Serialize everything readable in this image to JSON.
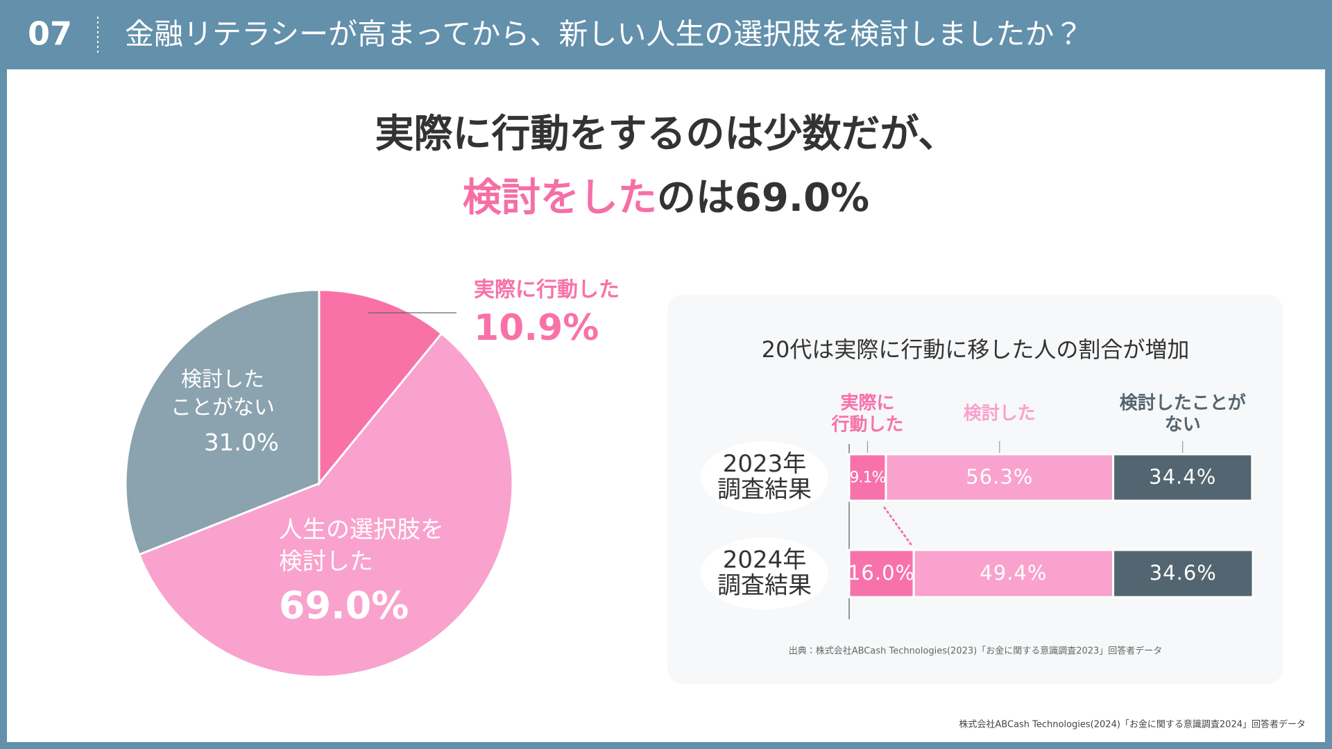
{
  "header": {
    "number": "07",
    "title": "金融リテラシーが高まってから、新しい人生の選択肢を検討しましたか？"
  },
  "headline": {
    "line1": "実際に行動をするのは少数だが、",
    "line2_highlight": "検討をした",
    "line2_rest": "のは69.0%"
  },
  "chart_data": [
    {
      "type": "pie",
      "categories": [
        "実際に行動した",
        "人生の選択肢を\n検討した",
        "検討した\nことがない"
      ],
      "values": [
        10.9,
        69.0,
        31.0
      ],
      "value_labels": [
        "10.9%",
        "69.0%",
        "31.0%"
      ],
      "colors": [
        "#f872a8",
        "#f9a2cd",
        "#8aa3ae"
      ],
      "overlay_first": true
    },
    {
      "type": "stacked_bar",
      "title": "20代は実際に行動に移した人の割合が増加",
      "categories": [
        "2023年\n調査結果",
        "2024年\n調査結果"
      ],
      "series": [
        {
          "name": "実際に\n行動した",
          "color": "#f772ab",
          "values": [
            9.1,
            16.0
          ],
          "value_labels": [
            "9.1%",
            "16.0%"
          ]
        },
        {
          "name": "検討した",
          "color": "#f9a2cd",
          "values": [
            56.3,
            49.4
          ],
          "value_labels": [
            "56.3%",
            "49.4%"
          ]
        },
        {
          "name": "検討したことが\nない",
          "color": "#536570",
          "values": [
            34.4,
            34.6
          ],
          "value_labels": [
            "34.4%",
            "34.6%"
          ]
        }
      ],
      "xlim": [
        0,
        100
      ],
      "source": "出典：株式会社ABCash Technologies(2023)「お金に関する意識調査2023」回答者データ"
    }
  ],
  "footnote": "株式会社ABCash Technologies(2024)「お金に関する意識調査2024」回答者データ"
}
